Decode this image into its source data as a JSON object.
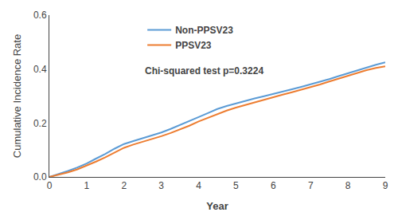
{
  "chart_data": {
    "type": "line",
    "xlabel": "Year",
    "ylabel": "Cumulative Incidence Rate",
    "x": [
      0,
      0.25,
      0.5,
      0.75,
      1.0,
      1.25,
      1.5,
      1.75,
      2.0,
      2.25,
      2.5,
      2.75,
      3.0,
      3.25,
      3.5,
      3.75,
      4.0,
      4.25,
      4.5,
      4.75,
      5.0,
      5.25,
      5.5,
      5.75,
      6.0,
      6.25,
      6.5,
      6.75,
      7.0,
      7.25,
      7.5,
      7.75,
      8.0,
      8.25,
      8.5,
      8.75,
      9.0
    ],
    "series": [
      {
        "name": "Non-PPSV23",
        "color": "#5B9BD5",
        "values": [
          0,
          0.01,
          0.022,
          0.035,
          0.05,
          0.068,
          0.085,
          0.105,
          0.122,
          0.133,
          0.143,
          0.153,
          0.165,
          0.178,
          0.192,
          0.207,
          0.222,
          0.237,
          0.252,
          0.263,
          0.273,
          0.282,
          0.291,
          0.299,
          0.307,
          0.316,
          0.325,
          0.334,
          0.343,
          0.353,
          0.363,
          0.374,
          0.385,
          0.396,
          0.407,
          0.416,
          0.425
        ]
      },
      {
        "name": "PPSV23",
        "color": "#ED7D31",
        "values": [
          0,
          0.008,
          0.017,
          0.028,
          0.042,
          0.057,
          0.073,
          0.091,
          0.108,
          0.12,
          0.13,
          0.14,
          0.151,
          0.163,
          0.176,
          0.19,
          0.206,
          0.22,
          0.234,
          0.246,
          0.257,
          0.267,
          0.276,
          0.286,
          0.295,
          0.305,
          0.314,
          0.323,
          0.333,
          0.343,
          0.354,
          0.365,
          0.375,
          0.386,
          0.396,
          0.404,
          0.41
        ]
      }
    ],
    "xlim": [
      0,
      9
    ],
    "ylim": [
      0,
      0.6
    ],
    "xticks": [
      0,
      1,
      2,
      3,
      4,
      5,
      6,
      7,
      8,
      9
    ],
    "yticks": [
      {
        "value": 0,
        "label": "0.0"
      },
      0.2,
      0.4,
      0.6
    ],
    "annotation": "Chi-squared test p=0.3224",
    "grid": false,
    "legend": "upper left"
  }
}
